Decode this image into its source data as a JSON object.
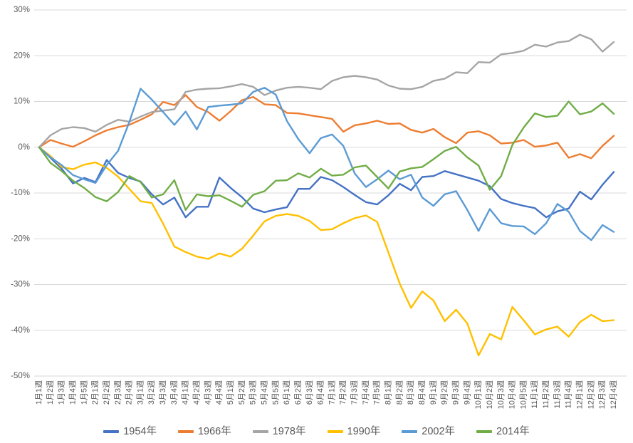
{
  "chart_data": {
    "type": "line",
    "title": "",
    "xlabel": "",
    "ylabel": "",
    "grid": true,
    "legend_position": "bottom",
    "ylim": [
      -50,
      30
    ],
    "y_ticks": [
      30,
      20,
      10,
      0,
      -10,
      -20,
      -30,
      -40,
      -50
    ],
    "y_tick_suffix": "%",
    "categories": [
      "1月1週",
      "1月2週",
      "1月3週",
      "1月4週",
      "1月5週",
      "2月1週",
      "2月2週",
      "2月3週",
      "2月4週",
      "3月1週",
      "3月2週",
      "3月3週",
      "3月4週",
      "4月1週",
      "4月2週",
      "4月3週",
      "4月4週",
      "5月1週",
      "5月2週",
      "5月3週",
      "5月4週",
      "5月5週",
      "6月1週",
      "6月2週",
      "6月3週",
      "6月4週",
      "7月1週",
      "7月2週",
      "7月3週",
      "7月4週",
      "7月5週",
      "8月1週",
      "8月2週",
      "8月3週",
      "8月4週",
      "9月1週",
      "9月2週",
      "9月3週",
      "9月4週",
      "10月1週",
      "10月2週",
      "10月3週",
      "10月4週",
      "10月5週",
      "11月1週",
      "11月2週",
      "11月3週",
      "11月4週",
      "12月1週",
      "12月2週",
      "12月3週",
      "12月4週"
    ],
    "series": [
      {
        "name": "1954年",
        "color": "#4472C4",
        "values": [
          0,
          -2.3,
          -4.7,
          -7.9,
          -6.7,
          -7.6,
          -2.8,
          -5.6,
          -6.7,
          -7.5,
          -10.3,
          -12.5,
          -11.0,
          -15.3,
          -13.0,
          -13.0,
          -6.6,
          -8.9,
          -10.9,
          -13.4,
          -14.2,
          -13.6,
          -13.1,
          -9.1,
          -9.1,
          -6.5,
          -7.2,
          -8.7,
          -10.4,
          -12.0,
          -12.5,
          -10.5,
          -8.0,
          -9.4,
          -6.5,
          -6.3,
          -5.2,
          -5.9,
          -6.6,
          -7.3,
          -8.5,
          -11.3,
          -12.2,
          -12.8,
          -13.3,
          -15.3,
          -14.0,
          -13.4,
          -9.7,
          -11.4,
          -8.2,
          -5.4
        ]
      },
      {
        "name": "1966年",
        "color": "#ED7D31",
        "values": [
          0,
          1.6,
          0.8,
          0.1,
          1.3,
          2.6,
          3.7,
          4.4,
          4.9,
          6.0,
          7.2,
          9.9,
          9.2,
          11.4,
          8.8,
          7.7,
          5.8,
          7.9,
          10.3,
          11.0,
          9.4,
          9.2,
          7.5,
          7.4,
          7.0,
          6.6,
          6.2,
          3.4,
          4.8,
          5.2,
          5.8,
          5.1,
          5.2,
          3.8,
          3.2,
          4.0,
          2.2,
          0.9,
          3.2,
          3.5,
          2.6,
          0.8,
          1.0,
          1.6,
          0.1,
          0.4,
          1.0,
          -2.3,
          -1.5,
          -2.4,
          0.3,
          2.5
        ]
      },
      {
        "name": "1978年",
        "color": "#A5A5A5",
        "values": [
          0,
          2.6,
          4.0,
          4.4,
          4.2,
          3.4,
          4.9,
          6.0,
          5.6,
          6.7,
          7.7,
          8.0,
          8.3,
          12.1,
          12.6,
          12.8,
          12.9,
          13.3,
          13.8,
          13.2,
          11.4,
          12.4,
          13.0,
          13.2,
          13.0,
          12.7,
          14.5,
          15.3,
          15.6,
          15.3,
          14.8,
          13.5,
          12.8,
          12.7,
          13.2,
          14.5,
          15.0,
          16.4,
          16.2,
          18.6,
          18.5,
          20.3,
          20.6,
          21.1,
          22.4,
          22.0,
          22.9,
          23.2,
          24.6,
          23.6,
          20.9,
          23.0
        ]
      },
      {
        "name": "1990年",
        "color": "#FFC000",
        "values": [
          0,
          -1.9,
          -4.3,
          -4.8,
          -3.8,
          -3.3,
          -4.5,
          -6.4,
          -9.1,
          -11.8,
          -12.2,
          -16.7,
          -21.7,
          -22.9,
          -23.9,
          -24.4,
          -23.2,
          -23.9,
          -22.2,
          -19.3,
          -16.2,
          -15.0,
          -14.6,
          -15.0,
          -16.1,
          -18.1,
          -17.9,
          -16.6,
          -15.5,
          -14.9,
          -16.3,
          -23.0,
          -29.8,
          -35.1,
          -31.5,
          -33.5,
          -38.0,
          -35.5,
          -38.5,
          -45.5,
          -40.8,
          -42.0,
          -34.9,
          -37.8,
          -40.9,
          -39.8,
          -39.2,
          -41.4,
          -38.2,
          -36.6,
          -38.0,
          -37.8
        ]
      },
      {
        "name": "2002年",
        "color": "#5B9BD5",
        "values": [
          0,
          -2.2,
          -3.9,
          -6.1,
          -7.0,
          -7.8,
          -3.9,
          -0.8,
          5.5,
          12.8,
          10.4,
          7.7,
          4.9,
          7.8,
          3.9,
          8.8,
          9.1,
          9.3,
          9.6,
          12.1,
          13.0,
          11.5,
          5.7,
          1.8,
          -1.3,
          2.0,
          2.8,
          0.3,
          -5.7,
          -8.7,
          -7.0,
          -5.1,
          -7.0,
          -6.0,
          -11.0,
          -12.8,
          -10.3,
          -9.6,
          -13.7,
          -18.3,
          -13.5,
          -16.6,
          -17.2,
          -17.3,
          -19.0,
          -16.6,
          -12.4,
          -14.1,
          -18.3,
          -20.3,
          -17.0,
          -18.5
        ]
      },
      {
        "name": "2014年",
        "color": "#70AD47",
        "values": [
          0,
          -3.4,
          -5.2,
          -7.3,
          -8.9,
          -10.9,
          -11.8,
          -9.8,
          -6.3,
          -7.6,
          -11.0,
          -10.3,
          -7.2,
          -13.7,
          -10.3,
          -10.7,
          -10.5,
          -11.7,
          -13.0,
          -10.4,
          -9.6,
          -7.3,
          -7.2,
          -5.7,
          -6.6,
          -4.7,
          -6.2,
          -6.0,
          -4.4,
          -4.0,
          -6.5,
          -9.0,
          -5.3,
          -4.6,
          -4.3,
          -2.6,
          -0.8,
          0.1,
          -2.2,
          -4.0,
          -9.3,
          -6.3,
          0.5,
          4.3,
          7.4,
          6.6,
          6.9,
          10.0,
          7.2,
          7.8,
          9.6,
          7.3
        ]
      }
    ]
  },
  "colors": {
    "background": "#FFFFFF",
    "gridline": "#D9D9D9",
    "axis_text": "#595959"
  }
}
